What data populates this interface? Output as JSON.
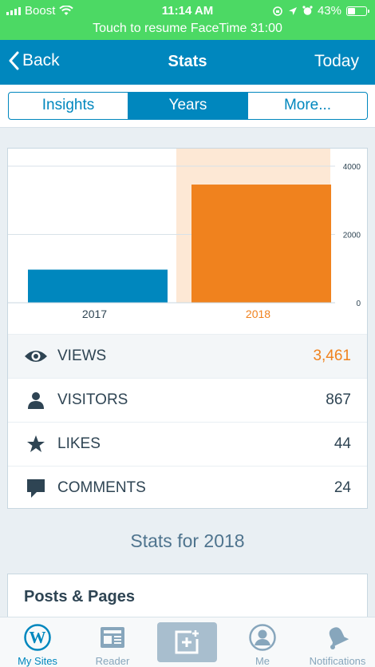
{
  "status_bar": {
    "carrier": "Boost",
    "time": "11:14 AM",
    "battery": "43%",
    "battery_level": 0.43,
    "banner": "Touch to resume FaceTime 31:00"
  },
  "navbar": {
    "back_label": "Back",
    "title": "Stats",
    "today_label": "Today"
  },
  "segments": [
    "Insights",
    "Years",
    "More..."
  ],
  "active_segment": "Years",
  "chart_data": {
    "type": "bar",
    "categories": [
      "2017",
      "2018"
    ],
    "values": [
      970,
      3461
    ],
    "ylim": [
      0,
      4000
    ],
    "yticks": [
      "0",
      "2000",
      "4000"
    ],
    "highlighted": "2018",
    "colors": {
      "default": "#0087be",
      "highlight": "#f0821e",
      "highlight_bg": "#fde8d5"
    }
  },
  "stats": [
    {
      "icon": "eye-icon",
      "label": "VIEWS",
      "value": "3,461"
    },
    {
      "icon": "person-icon",
      "label": "VISITORS",
      "value": "867"
    },
    {
      "icon": "star-icon",
      "label": "LIKES",
      "value": "44"
    },
    {
      "icon": "comment-icon",
      "label": "COMMENTS",
      "value": "24"
    }
  ],
  "stats_for": "Stats for 2018",
  "posts_pages_title": "Posts & Pages",
  "tabs": [
    {
      "icon": "wordpress-icon",
      "label": "My Sites",
      "active": true
    },
    {
      "icon": "reader-icon",
      "label": "Reader",
      "active": false
    },
    {
      "icon": "new-post-icon",
      "label": "",
      "active": false
    },
    {
      "icon": "me-icon",
      "label": "Me",
      "active": false
    },
    {
      "icon": "notifications-icon",
      "label": "Notifications",
      "active": false
    }
  ],
  "colors": {
    "status_green": "#4cd964",
    "brand_blue": "#0087be",
    "highlight_orange": "#f0821e"
  }
}
